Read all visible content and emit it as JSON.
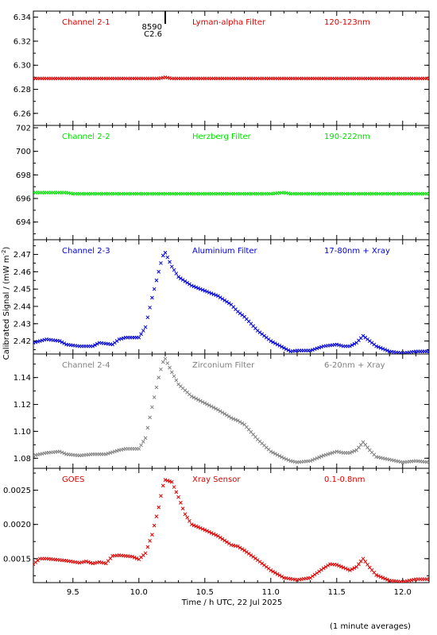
{
  "figure": {
    "ylabel": "Calibrated Signal / (mW m",
    "ylabel_sup": "-2",
    "ylabel_end": ")",
    "xlabel": "Time / h UTC, 22 Jul 2025",
    "footnote": "(1 minute averages)",
    "flare_marker": {
      "x": 10.2,
      "labels": [
        "8590",
        "C2.6"
      ]
    },
    "x_ticks": [
      "9.5",
      "10.0",
      "10.5",
      "11.0",
      "11.5",
      "12.0"
    ]
  },
  "chart_data": [
    {
      "type": "scatter",
      "channel": "Channel 2-1",
      "filter": "Lyman-alpha Filter",
      "band": "120-123nm",
      "color": "#e00000",
      "xlim": [
        9.2,
        12.2
      ],
      "ylim": [
        6.25,
        6.345
      ],
      "yticks": [
        "6.26",
        "6.28",
        "6.30",
        "6.32",
        "6.34"
      ],
      "y_tick_values": [
        6.26,
        6.28,
        6.3,
        6.32,
        6.34
      ],
      "x": [
        9.2,
        10.0,
        10.15,
        10.2,
        10.25,
        10.3,
        12.2
      ],
      "y": [
        6.289,
        6.289,
        6.289,
        6.29,
        6.289,
        6.289,
        6.289
      ]
    },
    {
      "type": "scatter",
      "channel": "Channel 2-2",
      "filter": "Herzberg Filter",
      "band": "190-222nm",
      "color": "#00e000",
      "xlim": [
        9.2,
        12.2
      ],
      "ylim": [
        692.5,
        702.2
      ],
      "yticks": [
        "694",
        "696",
        "698",
        "700",
        "702"
      ],
      "y_tick_values": [
        694,
        696,
        698,
        700,
        702
      ],
      "x": [
        9.2,
        9.45,
        9.5,
        10.0,
        11.0,
        11.1,
        11.15,
        12.2
      ],
      "y": [
        696.5,
        696.5,
        696.4,
        696.4,
        696.4,
        696.5,
        696.4,
        696.4
      ]
    },
    {
      "type": "scatter",
      "channel": "Channel 2-3",
      "filter": "Aluminium Filter",
      "band": "17-80nm + Xray",
      "color": "#0000dd",
      "xlim": [
        9.2,
        12.2
      ],
      "ylim": [
        2.4125,
        2.4785
      ],
      "yticks": [
        "2.42",
        "2.43",
        "2.44",
        "2.45",
        "2.46",
        "2.47"
      ],
      "y_tick_values": [
        2.42,
        2.43,
        2.44,
        2.45,
        2.46,
        2.47
      ],
      "x": [
        9.2,
        9.3,
        9.4,
        9.45,
        9.55,
        9.65,
        9.7,
        9.8,
        9.85,
        9.9,
        10.0,
        10.05,
        10.1,
        10.15,
        10.18,
        10.2,
        10.25,
        10.3,
        10.4,
        10.5,
        10.6,
        10.7,
        10.75,
        10.8,
        10.9,
        11.0,
        11.1,
        11.15,
        11.2,
        11.3,
        11.4,
        11.5,
        11.55,
        11.6,
        11.65,
        11.7,
        11.75,
        11.8,
        11.9,
        12.0,
        12.1,
        12.2
      ],
      "y": [
        2.419,
        2.421,
        2.42,
        2.418,
        2.417,
        2.417,
        2.419,
        2.418,
        2.421,
        2.422,
        2.422,
        2.428,
        2.445,
        2.46,
        2.469,
        2.471,
        2.463,
        2.457,
        2.452,
        2.449,
        2.446,
        2.441,
        2.437,
        2.434,
        2.426,
        2.42,
        2.416,
        2.414,
        2.4145,
        2.4145,
        2.417,
        2.418,
        2.417,
        2.417,
        2.419,
        2.423,
        2.42,
        2.417,
        2.414,
        2.413,
        2.414,
        2.414
      ]
    },
    {
      "type": "scatter",
      "channel": "Channel 2-4",
      "filter": "Zirconium Filter",
      "band": "6-20nm + Xray",
      "color": "#808080",
      "xlim": [
        9.2,
        12.2
      ],
      "ylim": [
        1.0725,
        1.1575
      ],
      "yticks": [
        "1.08",
        "1.10",
        "1.12",
        "1.14"
      ],
      "y_tick_values": [
        1.08,
        1.1,
        1.12,
        1.14
      ],
      "x": [
        9.2,
        9.3,
        9.4,
        9.45,
        9.55,
        9.65,
        9.75,
        9.85,
        9.9,
        10.0,
        10.05,
        10.1,
        10.15,
        10.18,
        10.2,
        10.25,
        10.3,
        10.4,
        10.5,
        10.6,
        10.7,
        10.75,
        10.8,
        10.9,
        11.0,
        11.1,
        11.15,
        11.2,
        11.3,
        11.4,
        11.5,
        11.55,
        11.6,
        11.65,
        11.7,
        11.75,
        11.8,
        11.9,
        12.0,
        12.1,
        12.2
      ],
      "y": [
        1.082,
        1.084,
        1.085,
        1.083,
        1.082,
        1.083,
        1.083,
        1.086,
        1.087,
        1.087,
        1.095,
        1.118,
        1.14,
        1.151,
        1.154,
        1.144,
        1.135,
        1.126,
        1.121,
        1.116,
        1.11,
        1.108,
        1.105,
        1.094,
        1.085,
        1.08,
        1.078,
        1.077,
        1.078,
        1.082,
        1.085,
        1.084,
        1.084,
        1.086,
        1.092,
        1.086,
        1.081,
        1.079,
        1.077,
        1.078,
        1.077
      ]
    },
    {
      "type": "scatter",
      "channel": "GOES",
      "filter": "Xray Sensor",
      "band": "0.1-0.8nm",
      "color": "#e00000",
      "xlim": [
        9.2,
        12.2
      ],
      "ylim": [
        0.00115,
        0.00282
      ],
      "yticks": [
        "0.0015",
        "0.0020",
        "0.0025"
      ],
      "y_tick_values": [
        0.0015,
        0.002,
        0.0025
      ],
      "x": [
        9.2,
        9.25,
        9.3,
        9.45,
        9.55,
        9.6,
        9.65,
        9.7,
        9.75,
        9.8,
        9.85,
        9.95,
        10.0,
        10.05,
        10.1,
        10.15,
        10.18,
        10.2,
        10.25,
        10.3,
        10.35,
        10.4,
        10.5,
        10.6,
        10.7,
        10.75,
        10.8,
        10.9,
        11.0,
        11.1,
        11.2,
        11.3,
        11.4,
        11.45,
        11.5,
        11.6,
        11.65,
        11.7,
        11.75,
        11.8,
        11.9,
        12.0,
        12.1,
        12.2
      ],
      "y": [
        0.00142,
        0.0015,
        0.0015,
        0.00147,
        0.00144,
        0.00146,
        0.00143,
        0.00145,
        0.00143,
        0.00154,
        0.00155,
        0.00153,
        0.00149,
        0.00158,
        0.00185,
        0.00225,
        0.00255,
        0.00265,
        0.00262,
        0.0024,
        0.00215,
        0.002,
        0.00192,
        0.00183,
        0.0017,
        0.00168,
        0.00162,
        0.00148,
        0.00133,
        0.00122,
        0.00119,
        0.00122,
        0.00136,
        0.00142,
        0.00141,
        0.00133,
        0.00138,
        0.0015,
        0.00137,
        0.00126,
        0.00118,
        0.00116,
        0.0012,
        0.0012
      ]
    }
  ]
}
